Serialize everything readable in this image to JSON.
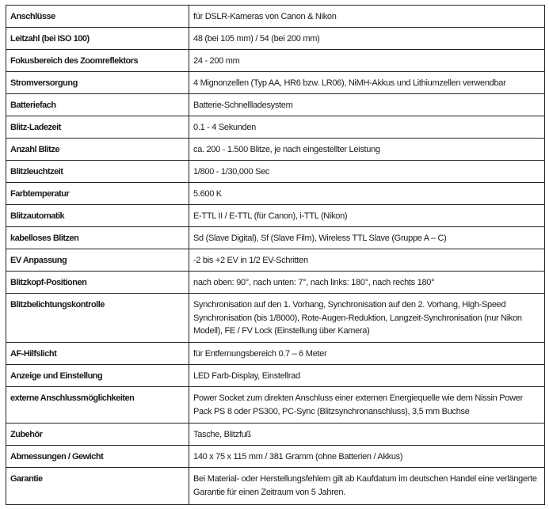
{
  "specs": [
    {
      "label": "Anschlüsse",
      "value": "für DSLR-Kameras von Canon & Nikon"
    },
    {
      "label": "Leitzahl (bei ISO 100)",
      "value": "48 (bei 105 mm) / 54 (bei 200 mm)"
    },
    {
      "label": "Fokusbereich des Zoomreflektors",
      "value": "24 - 200 mm"
    },
    {
      "label": "Stromversorgung",
      "value": "4 Mignonzellen (Typ AA, HR6 bzw. LR06), NiMH-Akkus und Lithiumzellen verwendbar"
    },
    {
      "label": "Batteriefach",
      "value": "Batterie-Schnellladesystem"
    },
    {
      "label": "Blitz-Ladezeit",
      "value": "0.1 - 4 Sekunden"
    },
    {
      "label": "Anzahl Blitze",
      "value": "ca. 200 - 1.500 Blitze, je nach eingestellter Leistung"
    },
    {
      "label": "Blitzleuchtzeit",
      "value": "1/800 - 1/30,000 Sec"
    },
    {
      "label": "Farbtemperatur",
      "value": "5.600 K"
    },
    {
      "label": "Blitzautomatik",
      "value": "E-TTL II / E-TTL (für Canon), i-TTL (Nikon)"
    },
    {
      "label": "kabelloses Blitzen",
      "value": "Sd (Slave Digital), Sf (Slave Film), Wireless TTL Slave (Gruppe A – C)"
    },
    {
      "label": "EV Anpassung",
      "value": "-2 bis +2 EV in 1/2 EV-Schritten"
    },
    {
      "label": "Blitzkopf-Positionen",
      "value": "nach oben: 90°, nach unten: 7°, nach links: 180°, nach rechts 180°"
    },
    {
      "label": "Blitzbelichtungskontrolle",
      "value": "Synchronisation auf den 1. Vorhang, Synchronisation auf den 2. Vorhang, High-Speed Synchronisation (bis 1/8000), Rote-Augen-Reduktion, Langzeit-Synchronisation (nur Nikon Modell), FE / FV Lock (Einstellung über Kamera)"
    },
    {
      "label": "AF-Hilfslicht",
      "value": "für Entfernungsbereich 0.7 – 6 Meter"
    },
    {
      "label": "Anzeige und Einstellung",
      "value": "LED Farb-Display, Einstellrad"
    },
    {
      "label": "externe Anschlussmöglichkeiten",
      "value": "Power Socket zum direkten Anschluss einer externen Energiequelle wie dem Nissin Power Pack PS 8 oder PS300, PC-Sync (Blitzsynchronanschluss), 3,5 mm Buchse"
    },
    {
      "label": "Zubehör",
      "value": "Tasche, Blitzfuß"
    },
    {
      "label": "Abmessungen / Gewicht",
      "value": "140 x 75 x 115 mm / 381 Gramm (ohne Batterien / Akkus)"
    },
    {
      "label": "Garantie",
      "value": "Bei Material- oder Herstellungsfehlern gilt ab Kaufdatum im deutschen Handel eine verlängerte Garantie für einen Zeitraum von 5 Jahren."
    }
  ]
}
